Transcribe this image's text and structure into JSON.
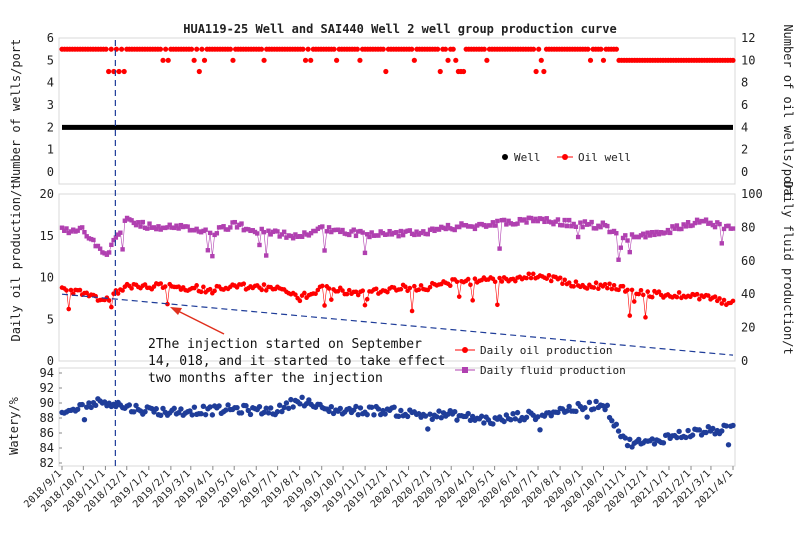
{
  "chart_data": [
    {
      "type": "scatter",
      "title": "HUA119-25 Well and SAI440 Well 2 well group production curve",
      "ylabel_left": "Number of wells/port",
      "ylabel_right": "Number of oil wells/port",
      "ylim_left": [
        0,
        6
      ],
      "ylim_right": [
        0,
        12
      ],
      "left_ticks": [
        "0",
        "1",
        "2",
        "3",
        "4",
        "5",
        "6"
      ],
      "right_ticks": [
        "0",
        "2",
        "4",
        "6",
        "8",
        "10",
        "12"
      ],
      "legend": [
        "Well",
        "Oil well"
      ],
      "legend_position": "lower-right",
      "series": [
        {
          "name": "Well",
          "axis": "left",
          "color": "#000000",
          "constant": 2
        },
        {
          "name": "Oil well",
          "axis": "right",
          "color": "#ff0000",
          "typical": 11,
          "min": 9,
          "final": 10
        }
      ]
    },
    {
      "type": "scatter",
      "ylabel_left": "Daily oil production/t",
      "ylabel_right": "Daily fluid production/t",
      "ylim_left": [
        0,
        20
      ],
      "ylim_right": [
        0,
        100
      ],
      "left_ticks": [
        "0",
        "5",
        "10",
        "15",
        "20"
      ],
      "right_ticks": [
        "0",
        "20",
        "40",
        "60",
        "80",
        "100"
      ],
      "legend": [
        "Daily oil production",
        "Daily fluid production"
      ],
      "legend_position": "lower-right",
      "series": [
        {
          "name": "Daily oil production",
          "axis": "left",
          "color": "#ff0000",
          "x": [
            "2018/9/1",
            "2018/10/1",
            "2018/11/1",
            "2018/12/1",
            "2019/1/1",
            "2019/2/1",
            "2019/3/1",
            "2019/4/1",
            "2019/5/1",
            "2019/6/1",
            "2019/7/1",
            "2019/8/1",
            "2019/9/1",
            "2019/10/1",
            "2019/11/1",
            "2019/12/1",
            "2020/1/1",
            "2020/2/1",
            "2020/3/1",
            "2020/4/1",
            "2020/5/1",
            "2020/6/1",
            "2020/7/1",
            "2020/8/1",
            "2020/9/1",
            "2020/10/1",
            "2020/11/1",
            "2020/12/1",
            "2021/1/1",
            "2021/2/1",
            "2021/3/1",
            "2021/4/1"
          ],
          "y": [
            8.4,
            8.2,
            7.3,
            9.1,
            9.0,
            8.9,
            8.8,
            8.5,
            8.9,
            8.8,
            8.7,
            7.5,
            8.8,
            8.4,
            8.2,
            8.6,
            8.8,
            8.9,
            9.4,
            9.5,
            9.8,
            9.9,
            10.2,
            9.6,
            9.0,
            9.0,
            8.7,
            8.0,
            7.9,
            7.9,
            7.6,
            6.8
          ]
        },
        {
          "name": "Daily fluid production",
          "axis": "right",
          "color": "#b040b0",
          "x": [
            "2018/9/1",
            "2018/10/1",
            "2018/11/1",
            "2018/12/1",
            "2019/1/1",
            "2019/2/1",
            "2019/3/1",
            "2019/4/1",
            "2019/5/1",
            "2019/6/1",
            "2019/7/1",
            "2019/8/1",
            "2019/9/1",
            "2019/10/1",
            "2019/11/1",
            "2019/12/1",
            "2020/1/1",
            "2020/2/1",
            "2020/3/1",
            "2020/4/1",
            "2020/5/1",
            "2020/6/1",
            "2020/7/1",
            "2020/8/1",
            "2020/9/1",
            "2020/10/1",
            "2020/11/1",
            "2020/12/1",
            "2021/1/1",
            "2021/2/1",
            "2021/3/1",
            "2021/4/1"
          ],
          "y": [
            78,
            79,
            62,
            84,
            81,
            80,
            79,
            77,
            82,
            78,
            76,
            75,
            79,
            78,
            76,
            76,
            77,
            77,
            80,
            81,
            82,
            84,
            84,
            83,
            82,
            81,
            74,
            75,
            78,
            83,
            83,
            78
          ]
        }
      ],
      "trend_line": {
        "from": {
          "x": "2018/9/1",
          "y": 8.0
        },
        "to": {
          "x": "2021/4/1",
          "y": 0.7
        },
        "color": "#1f3d99"
      }
    },
    {
      "type": "scatter",
      "ylabel_left": "Watery/%",
      "ylim_left": [
        82,
        94
      ],
      "left_ticks": [
        "82",
        "84",
        "86",
        "88",
        "90",
        "92",
        "94"
      ],
      "series": [
        {
          "name": "Watery",
          "axis": "left",
          "color": "#1f3d99",
          "x": [
            "2018/9/1",
            "2018/10/1",
            "2018/11/1",
            "2018/12/1",
            "2019/1/1",
            "2019/2/1",
            "2019/3/1",
            "2019/4/1",
            "2019/5/1",
            "2019/6/1",
            "2019/7/1",
            "2019/8/1",
            "2019/9/1",
            "2019/10/1",
            "2019/11/1",
            "2019/12/1",
            "2020/1/1",
            "2020/2/1",
            "2020/3/1",
            "2020/4/1",
            "2020/5/1",
            "2020/6/1",
            "2020/7/1",
            "2020/8/1",
            "2020/9/1",
            "2020/10/1",
            "2020/11/1",
            "2020/12/1",
            "2021/1/1",
            "2021/2/1",
            "2021/3/1",
            "2021/4/1"
          ],
          "y": [
            88.5,
            89.6,
            90.3,
            89.4,
            89.0,
            88.8,
            89.0,
            89.0,
            89.2,
            89.0,
            89.0,
            90.5,
            89.2,
            89.0,
            89.0,
            89.0,
            88.6,
            88.4,
            88.4,
            88.0,
            87.6,
            88.2,
            88.4,
            89.0,
            89.4,
            90.0,
            84.8,
            84.6,
            85.5,
            86.0,
            86.3,
            86.6
          ]
        }
      ]
    }
  ],
  "x_axis": {
    "ticks": [
      "2018/9/1",
      "2018/10/1",
      "2018/11/1",
      "2018/12/1",
      "2019/1/1",
      "2019/2/1",
      "2019/3/1",
      "2019/4/1",
      "2019/5/1",
      "2019/6/1",
      "2019/7/1",
      "2019/8/1",
      "2019/9/1",
      "2019/10/1",
      "2019/11/1",
      "2019/12/1",
      "2020/1/1",
      "2020/2/1",
      "2020/3/1",
      "2020/4/1",
      "2020/5/1",
      "2020/6/1",
      "2020/7/1",
      "2020/8/1",
      "2020/9/1",
      "2020/10/1",
      "2020/11/1",
      "2020/12/1",
      "2021/1/1",
      "2021/2/1",
      "2021/3/1",
      "2021/4/1"
    ]
  },
  "injection_marker": {
    "x": "2018/11/15",
    "color": "#1f3d99"
  },
  "annotation": {
    "lines": [
      "2The injection started on September",
      "14, 018, and it started to take effect",
      "two months after the injection"
    ],
    "arrow_color": "#e0301e"
  }
}
